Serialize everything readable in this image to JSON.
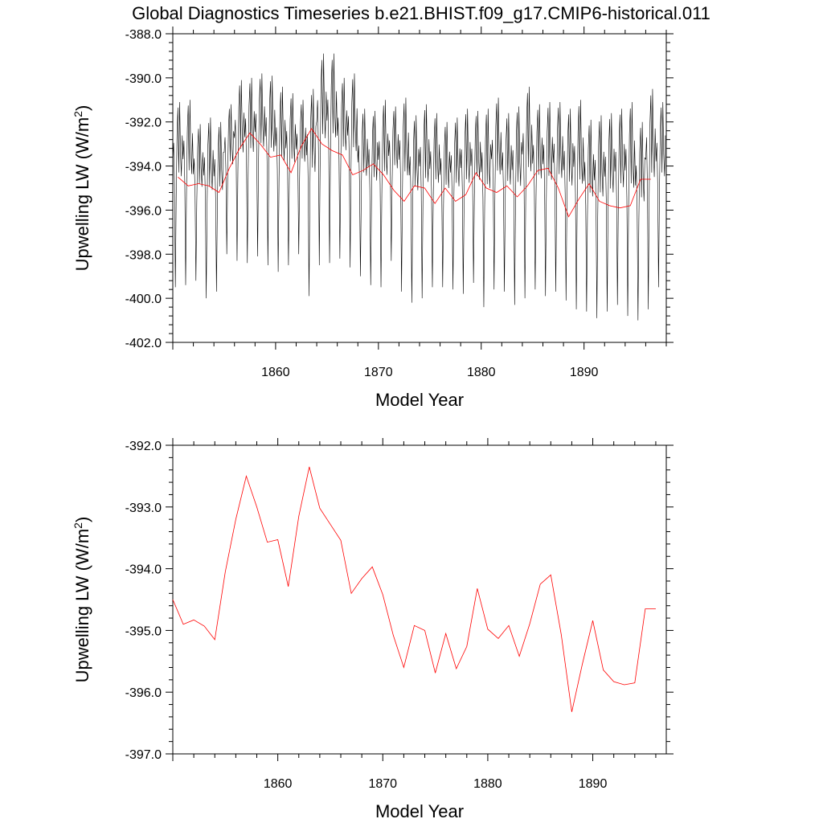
{
  "title": "Global Diagnostics Timeseries b.e21.BHIST.f09_g17.CMIP6-historical.011",
  "colors": {
    "monthly": "#000000",
    "annual": "#ff0000"
  },
  "chart_data": [
    {
      "type": "line",
      "xlabel": "Model Year",
      "ylabel": "Upwelling LW (W/m",
      "ylabel_sup": "2",
      "ylabel_close": ")",
      "xlim": [
        1850.0,
        1898.0
      ],
      "ylim": [
        -402.0,
        -388.0
      ],
      "xticks": [
        1860,
        1870,
        1880,
        1890
      ],
      "xtick_labels": [
        "1860",
        "1870",
        "1880",
        "1890"
      ],
      "yticks": [
        -402.0,
        -400.0,
        -398.0,
        -396.0,
        -394.0,
        -392.0,
        -390.0,
        -388.0
      ],
      "ytick_labels": [
        "-402.0",
        "-400.0",
        "-398.0",
        "-396.0",
        "-394.0",
        "-392.0",
        "-390.0",
        "-388.0"
      ],
      "monthly_series": {
        "color": "#000000",
        "start_year": 1850.0,
        "months_per_year": 12,
        "mins": [
          -399.5,
          -399.4,
          -399.2,
          -400.0,
          -399.7,
          -398.0,
          -398.3,
          -398.4,
          -398.1,
          -398.5,
          -398.8,
          -398.5,
          -398.0,
          -399.9,
          -398.5,
          -398.4,
          -398.2,
          -398.6,
          -399.0,
          -399.4,
          -399.5,
          -398.3,
          -399.7,
          -400.2,
          -400.0,
          -399.5,
          -399.5,
          -399.6,
          -399.8,
          -399.3,
          -400.4,
          -399.6,
          -399.7,
          -400.3,
          -400.0,
          -399.6,
          -399.9,
          -399.7,
          -400.1,
          -400.5,
          -400.6,
          -400.9,
          -400.6,
          -400.3,
          -400.8,
          -401.0,
          -400.5,
          -399.5
        ],
        "maxs": [
          -391.1,
          -391.0,
          -392.1,
          -391.8,
          -392.0,
          -391.2,
          -390.1,
          -390.0,
          -389.8,
          -389.9,
          -390.4,
          -390.7,
          -391.0,
          -390.5,
          -388.9,
          -388.9,
          -390.0,
          -389.8,
          -391.4,
          -391.5,
          -391.0,
          -391.3,
          -390.9,
          -391.7,
          -391.2,
          -391.6,
          -392.0,
          -391.8,
          -391.4,
          -391.5,
          -391.4,
          -390.9,
          -391.6,
          -391.3,
          -390.4,
          -391.2,
          -391.1,
          -391.1,
          -391.4,
          -391.0,
          -391.9,
          -391.7,
          -391.6,
          -391.4,
          -391.1,
          -392.0,
          -390.5,
          -391.1
        ]
      },
      "annual_series": {
        "color": "#ff0000",
        "x": [
          1850.5,
          1851.5,
          1852.5,
          1853.5,
          1854.5,
          1855.5,
          1856.5,
          1857.5,
          1858.5,
          1859.5,
          1860.5,
          1861.5,
          1862.5,
          1863.5,
          1864.5,
          1865.5,
          1866.5,
          1867.5,
          1868.5,
          1869.5,
          1870.5,
          1871.5,
          1872.5,
          1873.5,
          1874.5,
          1875.5,
          1876.5,
          1877.5,
          1878.5,
          1879.5,
          1880.5,
          1881.5,
          1882.5,
          1883.5,
          1884.5,
          1885.5,
          1886.5,
          1887.5,
          1888.5,
          1889.5,
          1890.5,
          1891.5,
          1892.5,
          1893.5,
          1894.5,
          1895.5,
          1896.5
        ],
        "y": [
          -394.5,
          -394.9,
          -394.8,
          -394.9,
          -395.2,
          -394.1,
          -393.2,
          -392.5,
          -393.0,
          -393.6,
          -393.5,
          -394.3,
          -393.1,
          -392.3,
          -393.0,
          -393.3,
          -393.5,
          -394.4,
          -394.2,
          -393.9,
          -394.4,
          -395.1,
          -395.6,
          -394.9,
          -395.0,
          -395.7,
          -395.0,
          -395.6,
          -395.3,
          -394.3,
          -395.0,
          -395.2,
          -394.9,
          -395.4,
          -394.9,
          -394.2,
          -394.1,
          -395.0,
          -396.3,
          -395.5,
          -394.8,
          -395.6,
          -395.8,
          -395.9,
          -395.8,
          -394.6,
          -394.6
        ]
      }
    },
    {
      "type": "line",
      "xlabel": "Model Year",
      "ylabel": "Upwelling LW (W/m",
      "ylabel_sup": "2",
      "ylabel_close": ")",
      "xlim": [
        1850.0,
        1897.0
      ],
      "ylim": [
        -397.0,
        -392.0
      ],
      "xticks": [
        1860,
        1870,
        1880,
        1890
      ],
      "xtick_labels": [
        "1860",
        "1870",
        "1880",
        "1890"
      ],
      "yticks": [
        -397.0,
        -396.0,
        -395.0,
        -394.0,
        -393.0,
        -392.0
      ],
      "ytick_labels": [
        "-397.0",
        "-396.0",
        "-395.0",
        "-394.0",
        "-393.0",
        "-392.0"
      ],
      "annual_series": {
        "color": "#ff0000",
        "x": [
          1850.0,
          1851.0,
          1852.0,
          1853.0,
          1854.0,
          1855.0,
          1856.0,
          1857.0,
          1858.0,
          1859.0,
          1860.0,
          1861.0,
          1862.0,
          1863.0,
          1864.0,
          1865.0,
          1866.0,
          1867.0,
          1868.0,
          1869.0,
          1870.0,
          1871.0,
          1872.0,
          1873.0,
          1874.0,
          1875.0,
          1876.0,
          1877.0,
          1878.0,
          1879.0,
          1880.0,
          1881.0,
          1882.0,
          1883.0,
          1884.0,
          1885.0,
          1886.0,
          1887.0,
          1888.0,
          1889.0,
          1890.0,
          1891.0,
          1892.0,
          1893.0,
          1894.0,
          1895.0,
          1896.0
        ],
        "y": [
          -394.5,
          -394.9,
          -394.83,
          -394.93,
          -395.15,
          -394.05,
          -393.2,
          -392.5,
          -393.0,
          -393.57,
          -393.53,
          -394.29,
          -393.15,
          -392.35,
          -393.02,
          -393.28,
          -393.54,
          -394.4,
          -394.16,
          -393.97,
          -394.42,
          -395.08,
          -395.6,
          -394.92,
          -395.0,
          -395.69,
          -395.05,
          -395.62,
          -395.26,
          -394.32,
          -394.98,
          -395.13,
          -394.92,
          -395.42,
          -394.89,
          -394.25,
          -394.1,
          -395.07,
          -396.32,
          -395.55,
          -394.84,
          -395.64,
          -395.83,
          -395.88,
          -395.85,
          -394.65,
          -394.65
        ]
      }
    }
  ]
}
